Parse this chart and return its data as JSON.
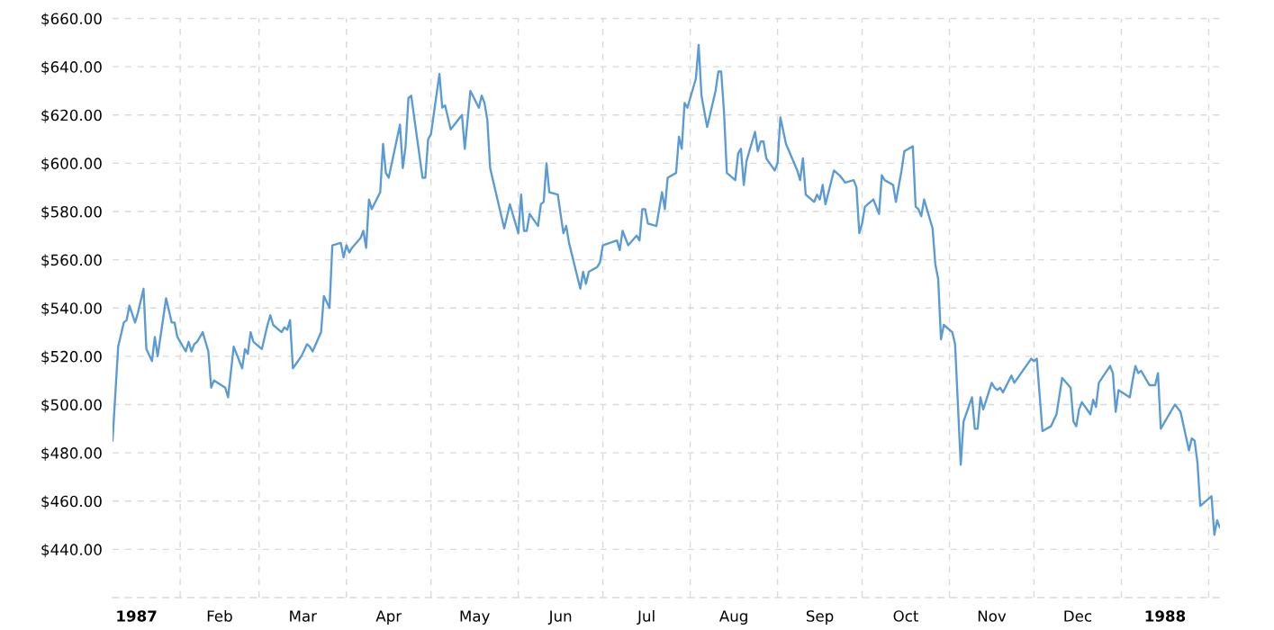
{
  "chart_data": {
    "type": "line",
    "x": [
      "1987-01-08",
      "1987-01-10",
      "1987-01-12",
      "1987-01-13",
      "1987-01-14",
      "1987-01-16",
      "1987-01-17",
      "1987-01-19",
      "1987-01-20",
      "1987-01-22",
      "1987-01-23",
      "1987-01-24",
      "1987-01-27",
      "1987-01-29",
      "1987-01-30",
      "1987-01-31",
      "1987-02-03",
      "1987-02-04",
      "1987-02-05",
      "1987-02-06",
      "1987-02-07",
      "1987-02-09",
      "1987-02-10",
      "1987-02-11",
      "1987-02-12",
      "1987-02-13",
      "1987-02-17",
      "1987-02-18",
      "1987-02-20",
      "1987-02-23",
      "1987-02-24",
      "1987-02-25",
      "1987-02-26",
      "1987-02-27",
      "1987-03-02",
      "1987-03-04",
      "1987-03-05",
      "1987-03-06",
      "1987-03-09",
      "1987-03-10",
      "1987-03-11",
      "1987-03-12",
      "1987-03-13",
      "1987-03-16",
      "1987-03-18",
      "1987-03-19",
      "1987-03-20",
      "1987-03-23",
      "1987-03-24",
      "1987-03-26",
      "1987-03-27",
      "1987-03-30",
      "1987-03-31",
      "1987-04-01",
      "1987-04-02",
      "1987-04-03",
      "1987-04-06",
      "1987-04-07",
      "1987-04-08",
      "1987-04-09",
      "1987-04-10",
      "1987-04-13",
      "1987-04-14",
      "1987-04-15",
      "1987-04-16",
      "1987-04-20",
      "1987-04-21",
      "1987-04-22",
      "1987-04-23",
      "1987-04-24",
      "1987-04-28",
      "1987-04-29",
      "1987-04-30",
      "1987-05-01",
      "1987-05-04",
      "1987-05-05",
      "1987-05-06",
      "1987-05-08",
      "1987-05-12",
      "1987-05-13",
      "1987-05-15",
      "1987-05-18",
      "1987-05-19",
      "1987-05-20",
      "1987-05-21",
      "1987-05-22",
      "1987-05-27",
      "1987-05-29",
      "1987-06-01",
      "1987-06-02",
      "1987-06-03",
      "1987-06-04",
      "1987-06-05",
      "1987-06-08",
      "1987-06-09",
      "1987-06-10",
      "1987-06-11",
      "1987-06-12",
      "1987-06-15",
      "1987-06-17",
      "1987-06-18",
      "1987-06-19",
      "1987-06-23",
      "1987-06-24",
      "1987-06-25",
      "1987-06-26",
      "1987-06-29",
      "1987-06-30",
      "1987-07-01",
      "1987-07-06",
      "1987-07-07",
      "1987-07-08",
      "1987-07-10",
      "1987-07-13",
      "1987-07-14",
      "1987-07-15",
      "1987-07-16",
      "1987-07-17",
      "1987-07-20",
      "1987-07-22",
      "1987-07-23",
      "1987-07-24",
      "1987-07-27",
      "1987-07-28",
      "1987-07-29",
      "1987-07-30",
      "1987-07-31",
      "1987-08-03",
      "1987-08-04",
      "1987-08-05",
      "1987-08-07",
      "1987-08-10",
      "1987-08-11",
      "1987-08-12",
      "1987-08-13",
      "1987-08-14",
      "1987-08-17",
      "1987-08-18",
      "1987-08-19",
      "1987-08-20",
      "1987-08-21",
      "1987-08-24",
      "1987-08-25",
      "1987-08-26",
      "1987-08-27",
      "1987-08-28",
      "1987-08-31",
      "1987-09-01",
      "1987-09-02",
      "1987-09-04",
      "1987-09-08",
      "1987-09-09",
      "1987-09-10",
      "1987-09-11",
      "1987-09-14",
      "1987-09-15",
      "1987-09-16",
      "1987-09-17",
      "1987-09-18",
      "1987-09-21",
      "1987-09-23",
      "1987-09-25",
      "1987-09-28",
      "1987-09-29",
      "1987-09-30",
      "1987-10-01",
      "1987-10-02",
      "1987-10-05",
      "1987-10-07",
      "1987-10-08",
      "1987-10-09",
      "1987-10-12",
      "1987-10-13",
      "1987-10-15",
      "1987-10-16",
      "1987-10-19",
      "1987-10-20",
      "1987-10-21",
      "1987-10-22",
      "1987-10-23",
      "1987-10-26",
      "1987-10-27",
      "1987-10-28",
      "1987-10-29",
      "1987-10-30",
      "1987-11-02",
      "1987-11-03",
      "1987-11-05",
      "1987-11-06",
      "1987-11-09",
      "1987-11-10",
      "1987-11-11",
      "1987-11-12",
      "1987-11-13",
      "1987-11-16",
      "1987-11-17",
      "1987-11-18",
      "1987-11-19",
      "1987-11-20",
      "1987-11-23",
      "1987-11-24",
      "1987-11-30",
      "1987-12-01",
      "1987-12-02",
      "1987-12-04",
      "1987-12-07",
      "1987-12-09",
      "1987-12-11",
      "1987-12-14",
      "1987-12-15",
      "1987-12-16",
      "1987-12-17",
      "1987-12-18",
      "1987-12-21",
      "1987-12-22",
      "1987-12-23",
      "1987-12-24",
      "1987-12-28",
      "1987-12-29",
      "1987-12-30",
      "1987-12-31",
      "1988-01-04",
      "1988-01-05",
      "1988-01-06",
      "1988-01-07",
      "1988-01-08",
      "1988-01-11",
      "1988-01-13",
      "1988-01-14",
      "1988-01-15",
      "1988-01-20",
      "1988-01-22",
      "1988-01-25",
      "1988-01-26",
      "1988-01-27",
      "1988-01-28",
      "1988-01-29",
      "1988-02-02",
      "1988-02-03",
      "1988-02-04",
      "1988-02-05"
    ],
    "series": [
      {
        "color": "#5b9bd5",
        "values": [
          485,
          524,
          534,
          535,
          541,
          534,
          538,
          548,
          523,
          518,
          528,
          520,
          544,
          534,
          534,
          528,
          522,
          526,
          522,
          525,
          526,
          530,
          526,
          522,
          507,
          510,
          507,
          503,
          524,
          515,
          523,
          521,
          530,
          526,
          523,
          533,
          537,
          533,
          530,
          532,
          531,
          535,
          515,
          520,
          525,
          524,
          522,
          530,
          545,
          540,
          566,
          567,
          561,
          566,
          563,
          565,
          569,
          572,
          565,
          585,
          581,
          588,
          608,
          596,
          594,
          616,
          598,
          607,
          627,
          628,
          594,
          594,
          610,
          612,
          637,
          623,
          624,
          614,
          620,
          606,
          630,
          623,
          628,
          625,
          618,
          598,
          573,
          583,
          571,
          587,
          572,
          572,
          579,
          574,
          583,
          584,
          600,
          588,
          587,
          571,
          574,
          567,
          548,
          555,
          550,
          555,
          557,
          559,
          566,
          568,
          564,
          572,
          566,
          570,
          568,
          581,
          581,
          575,
          574,
          588,
          581,
          594,
          596,
          611,
          606,
          625,
          623,
          635,
          649,
          628,
          615,
          630,
          638,
          638,
          621,
          596,
          593,
          604,
          606,
          591,
          601,
          613,
          605,
          609,
          609,
          602,
          597,
          600,
          619,
          608,
          597,
          593,
          602,
          587,
          584,
          587,
          585,
          591,
          583,
          597,
          595,
          592,
          593,
          590,
          571,
          575,
          582,
          585,
          579,
          595,
          593,
          591,
          584,
          597,
          605,
          607,
          582,
          581,
          578,
          585,
          573,
          558,
          552,
          527,
          533,
          530,
          525,
          475,
          493,
          503,
          490,
          490,
          503,
          498,
          509,
          507,
          506,
          507,
          505,
          512,
          509,
          519,
          518,
          519,
          489,
          491,
          496,
          511,
          507,
          493,
          491,
          498,
          501,
          496,
          502,
          499,
          509,
          516,
          513,
          497,
          506,
          503,
          510,
          516,
          513,
          514,
          508,
          508,
          513,
          490,
          500,
          497,
          481,
          486,
          485,
          476,
          458,
          462,
          446,
          452,
          449
        ]
      }
    ],
    "xlim": [
      "1987-01-08",
      "1988-02-05"
    ],
    "ylim": [
      420,
      660
    ],
    "xticks": [
      {
        "value": "1987-01-16T12:00",
        "label": "1987"
      },
      {
        "value": "1987-02-01",
        "label": null
      },
      {
        "value": "1987-02-15",
        "label": "Feb"
      },
      {
        "value": "1987-03-01",
        "label": null
      },
      {
        "value": "1987-03-16T12:00",
        "label": "Mar"
      },
      {
        "value": "1987-04-01",
        "label": null
      },
      {
        "value": "1987-04-16",
        "label": "Apr"
      },
      {
        "value": "1987-05-01",
        "label": null
      },
      {
        "value": "1987-05-16T12:00",
        "label": "May"
      },
      {
        "value": "1987-06-01",
        "label": null
      },
      {
        "value": "1987-06-16",
        "label": "Jun"
      },
      {
        "value": "1987-07-01",
        "label": null
      },
      {
        "value": "1987-07-16T12:00",
        "label": "Jul"
      },
      {
        "value": "1987-08-01",
        "label": null
      },
      {
        "value": "1987-08-16T12:00",
        "label": "Aug"
      },
      {
        "value": "1987-09-01",
        "label": null
      },
      {
        "value": "1987-09-16",
        "label": "Sep"
      },
      {
        "value": "1987-10-01",
        "label": null
      },
      {
        "value": "1987-10-16T12:00",
        "label": "Oct"
      },
      {
        "value": "1987-11-01",
        "label": null
      },
      {
        "value": "1987-11-16",
        "label": "Nov"
      },
      {
        "value": "1987-12-01",
        "label": null
      },
      {
        "value": "1987-12-16T12:00",
        "label": "Dec"
      },
      {
        "value": "1988-01-01",
        "label": null
      },
      {
        "value": "1988-01-16T12:00",
        "label": "1988"
      },
      {
        "value": "1988-02-01",
        "label": null
      }
    ],
    "yticks": [
      {
        "value": 440,
        "label": "$440.00"
      },
      {
        "value": 460,
        "label": "$460.00"
      },
      {
        "value": 480,
        "label": "$480.00"
      },
      {
        "value": 500,
        "label": "$500.00"
      },
      {
        "value": 520,
        "label": "$520.00"
      },
      {
        "value": 540,
        "label": "$540.00"
      },
      {
        "value": 560,
        "label": "$560.00"
      },
      {
        "value": 580,
        "label": "$580.00"
      },
      {
        "value": 600,
        "label": "$600.00"
      },
      {
        "value": 620,
        "label": "$620.00"
      },
      {
        "value": 640,
        "label": "$640.00"
      },
      {
        "value": 660,
        "label": "$660.00"
      }
    ],
    "grid": true,
    "line_style": "solid"
  }
}
